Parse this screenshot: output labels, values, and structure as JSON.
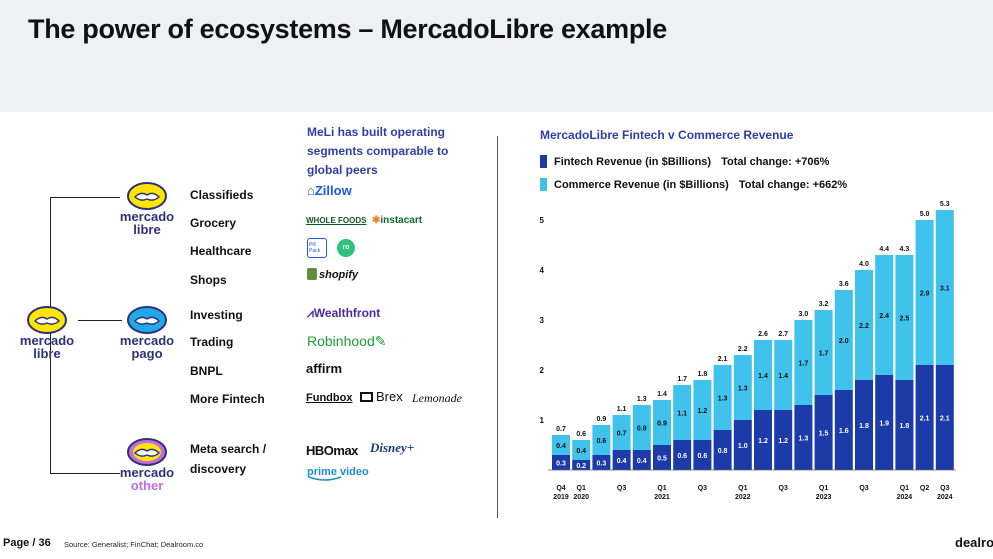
{
  "title": "The power of ecosystems – MercadoLibre example",
  "colors": {
    "fintech": "#1c3aa8",
    "commerce": "#3fc3ec",
    "accent_text": "#2e3fa8",
    "header_band": "#eef0f7"
  },
  "ecosystem": {
    "root": {
      "line1": "mercado",
      "line2": "libre",
      "icon": "handshake-icon"
    },
    "branches": [
      {
        "line1": "mercado",
        "line2": "libre",
        "icon": "handshake-icon"
      },
      {
        "line1": "mercado",
        "line2": "pago",
        "icon": "handshake-icon"
      },
      {
        "line1": "mercado",
        "line2": "other",
        "icon": "handshake-icon"
      }
    ],
    "segments": [
      "Classifieds",
      "Grocery",
      "Healthcare",
      "Shops",
      "Investing",
      "Trading",
      "BNPL",
      "More Fintech",
      "Meta search /",
      "discovery"
    ]
  },
  "peers": {
    "intro": "MeLi has built operating segments comparable to global peers",
    "zillow": "Zillow",
    "wholefoods": "WHOLE FOODS",
    "instacart": "instacart",
    "pillpack": "Pill Pack",
    "ro": "ro",
    "shopify": "shopify",
    "wealthfront": "Wealthfront",
    "robinhood": "Robinhood",
    "affirm": "affirm",
    "fundbox": "Fundbox",
    "brex": "Brex",
    "lemonade": "Lemonade",
    "hbomax": "HBOmax",
    "disney": "Disney+",
    "primevideo": "prime video"
  },
  "chart_data": {
    "type": "bar",
    "stacked": true,
    "title": "MercadoLibre Fintech v Commerce Revenue",
    "ylim": [
      0,
      5.5
    ],
    "yticks": [
      "1",
      "2",
      "3",
      "4",
      "5"
    ],
    "categories": [
      "Q4 2019",
      "Q1 2020",
      "Q2 2020",
      "Q3 2020",
      "Q4 2020",
      "Q1 2021",
      "Q2 2021",
      "Q3 2021",
      "Q4 2021",
      "Q1 2022",
      "Q2 2022",
      "Q3 2022",
      "Q4 2022",
      "Q1 2023",
      "Q2 2023",
      "Q3 2023",
      "Q4 2023",
      "Q1 2024",
      "Q2 2024",
      "Q3 2024"
    ],
    "x_tick_labels": [
      {
        "index": 0,
        "top": "Q4",
        "bottom": "2019"
      },
      {
        "index": 1,
        "top": "Q1",
        "bottom": "2020"
      },
      {
        "index": 3,
        "top": "Q3",
        "bottom": ""
      },
      {
        "index": 5,
        "top": "Q1",
        "bottom": "2021"
      },
      {
        "index": 7,
        "top": "Q3",
        "bottom": ""
      },
      {
        "index": 9,
        "top": "Q1",
        "bottom": "2022"
      },
      {
        "index": 11,
        "top": "Q3",
        "bottom": ""
      },
      {
        "index": 13,
        "top": "Q1",
        "bottom": "2023"
      },
      {
        "index": 15,
        "top": "Q3",
        "bottom": ""
      },
      {
        "index": 17,
        "top": "Q1",
        "bottom": "2024"
      },
      {
        "index": 18,
        "top": "Q2",
        "bottom": ""
      },
      {
        "index": 19,
        "top": "Q3",
        "bottom": "2024"
      }
    ],
    "series": [
      {
        "name": "Fintech Revenue (in $Billions)",
        "total_change": "Total change: +706%",
        "values": [
          0.3,
          0.2,
          0.3,
          0.4,
          0.4,
          0.5,
          0.6,
          0.6,
          0.8,
          1.0,
          1.2,
          1.2,
          1.3,
          1.5,
          1.6,
          1.8,
          1.9,
          1.8,
          2.1,
          2.1
        ]
      },
      {
        "name": "Commerce Revenue (in $Billions)",
        "total_change": "Total change: +662%",
        "values": [
          0.4,
          0.4,
          0.6,
          0.7,
          0.9,
          0.9,
          1.1,
          1.2,
          1.3,
          1.3,
          1.4,
          1.4,
          1.7,
          1.7,
          2.0,
          2.2,
          2.4,
          2.5,
          2.9,
          3.1
        ]
      }
    ],
    "totals": [
      0.7,
      0.6,
      0.9,
      1.1,
      1.3,
      1.4,
      1.7,
      1.8,
      2.1,
      2.2,
      2.6,
      2.7,
      3.0,
      3.2,
      3.6,
      4.0,
      4.4,
      4.3,
      5.0,
      5.3
    ]
  },
  "footer": {
    "page": "Page / 36",
    "source": "Source: Generalist; FinChat; Dealroom.co",
    "brand": "dealro"
  }
}
